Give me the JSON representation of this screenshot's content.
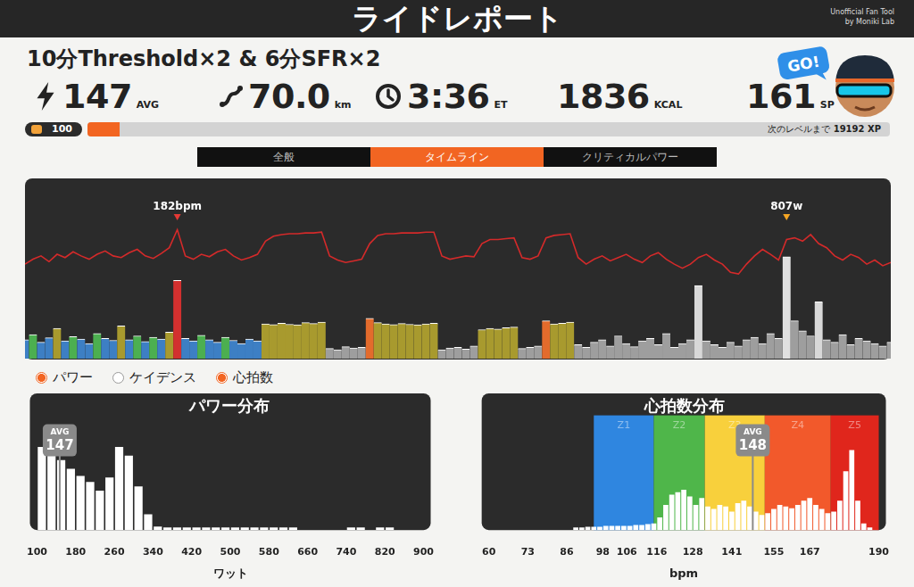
{
  "header": {
    "title": "ライドレポート",
    "credit": [
      "Unofficial Fan Tool",
      "by Moniki Lab"
    ]
  },
  "workout": "10分Threshold×2 & 6分SFR×2",
  "stats": [
    {
      "value": "147",
      "unit": "AVG"
    },
    {
      "value": "70.0",
      "unit": "km"
    },
    {
      "value": "3:36",
      "unit": "ET"
    },
    {
      "value": "1836",
      "unit": "KCAL"
    },
    {
      "value": "161",
      "unit": "SP"
    }
  ],
  "badge": "GO!",
  "level": "100",
  "xp_text": "次のレベルまで",
  "xp": "19192 XP",
  "xp_progress_percent": 4,
  "tabs": [
    "全般",
    "タイムライン",
    "クリティカルパワー"
  ],
  "active_tab": "タイムライン",
  "toggles": [
    {
      "label": "パワー",
      "checked": true
    },
    {
      "label": "ケイデンス",
      "checked": false
    },
    {
      "label": "心拍数",
      "checked": true
    }
  ],
  "chart_data": [
    {
      "type": "timeline",
      "x": [
        0,
        2,
        4,
        6,
        8,
        10,
        12,
        14,
        16,
        18,
        20,
        22,
        24,
        26,
        28,
        30,
        32,
        34,
        36,
        38,
        40,
        42,
        44,
        46,
        48,
        50,
        52,
        54,
        56,
        58,
        60,
        62,
        64,
        66,
        68,
        70,
        72,
        74,
        76,
        78,
        80,
        82,
        84,
        86,
        88,
        90,
        92,
        94,
        96,
        98,
        100,
        102,
        104,
        106,
        108,
        110,
        112,
        114,
        116,
        118,
        120,
        122,
        124,
        126,
        128,
        130,
        132,
        134,
        136,
        138,
        140,
        142,
        144,
        146,
        148,
        150,
        152,
        154,
        156,
        158,
        160,
        162,
        164,
        166,
        168,
        170,
        172,
        174,
        176,
        178,
        180,
        182,
        184,
        186,
        188,
        190,
        192,
        194,
        196,
        198,
        200,
        202,
        204,
        206,
        208,
        210,
        212,
        214,
        216
      ],
      "xlim": [
        0,
        216
      ],
      "ylim": [
        0,
        1400
      ],
      "y2lim": [
        25,
        240
      ],
      "tick_labels": false,
      "grid": false,
      "series": [
        {
          "type": "bar",
          "values": [
            150,
            190,
            130,
            165,
            240,
            140,
            175,
            155,
            120,
            200,
            160,
            145,
            260,
            150,
            180,
            135,
            170,
            155,
            210,
            620,
            160,
            140,
            185,
            150,
            130,
            170,
            145,
            120,
            155,
            140,
            275,
            270,
            280,
            272,
            268,
            285,
            278,
            290,
            80,
            70,
            95,
            85,
            90,
            320,
            285,
            275,
            270,
            278,
            272,
            268,
            275,
            280,
            70,
            85,
            90,
            75,
            100,
            230,
            240,
            235,
            245,
            250,
            80,
            90,
            100,
            300,
            275,
            280,
            290,
            110,
            90,
            130,
            150,
            100,
            180,
            120,
            95,
            140,
            160,
            110,
            200,
            90,
            120,
            150,
            580,
            140,
            110,
            90,
            130,
            100,
            150,
            170,
            120,
            200,
            160,
            807,
            300,
            220,
            180,
            450,
            150,
            130,
            190,
            110,
            160,
            140,
            120,
            100,
            130
          ],
          "colors": [
            "#3d7fc4",
            "#4caf50",
            "#3d7fc4",
            "#3d7fc4",
            "#a89a2e",
            "#3d7fc4",
            "#4caf50",
            "#3d7fc4",
            "#3d7fc4",
            "#4caf50",
            "#3d7fc4",
            "#3d7fc4",
            "#a89a2e",
            "#3d7fc4",
            "#4caf50",
            "#3d7fc4",
            "#4caf50",
            "#3d7fc4",
            "#a89a2e",
            "#d3302f",
            "#3d7fc4",
            "#3d7fc4",
            "#4caf50",
            "#3d7fc4",
            "#3d7fc4",
            "#4caf50",
            "#3d7fc4",
            "#3d7fc4",
            "#3d7fc4",
            "#3d7fc4",
            "#a89a2e",
            "#a89a2e",
            "#a89a2e",
            "#a89a2e",
            "#a89a2e",
            "#a89a2e",
            "#a89a2e",
            "#a89a2e",
            "#9e9e9e",
            "#9e9e9e",
            "#9e9e9e",
            "#9e9e9e",
            "#9e9e9e",
            "#e36b2c",
            "#a89a2e",
            "#a89a2e",
            "#a89a2e",
            "#a89a2e",
            "#a89a2e",
            "#a89a2e",
            "#a89a2e",
            "#a89a2e",
            "#9e9e9e",
            "#9e9e9e",
            "#9e9e9e",
            "#9e9e9e",
            "#9e9e9e",
            "#a89a2e",
            "#a89a2e",
            "#a89a2e",
            "#a89a2e",
            "#a89a2e",
            "#9e9e9e",
            "#9e9e9e",
            "#9e9e9e",
            "#e36b2c",
            "#a89a2e",
            "#a89a2e",
            "#a89a2e",
            "#9e9e9e",
            "#9e9e9e",
            "#9e9e9e",
            "#9e9e9e",
            "#9e9e9e",
            "#9e9e9e",
            "#9e9e9e",
            "#9e9e9e",
            "#9e9e9e",
            "#9e9e9e",
            "#9e9e9e",
            "#9e9e9e",
            "#9e9e9e",
            "#9e9e9e",
            "#9e9e9e",
            "#d8d8d8",
            "#9e9e9e",
            "#9e9e9e",
            "#9e9e9e",
            "#9e9e9e",
            "#9e9e9e",
            "#9e9e9e",
            "#9e9e9e",
            "#9e9e9e",
            "#9e9e9e",
            "#9e9e9e",
            "#e0e0e0",
            "#9e9e9e",
            "#9e9e9e",
            "#9e9e9e",
            "#d8d8d8",
            "#9e9e9e",
            "#9e9e9e",
            "#9e9e9e",
            "#9e9e9e",
            "#9e9e9e",
            "#9e9e9e",
            "#9e9e9e",
            "#9e9e9e",
            "#9e9e9e"
          ]
        },
        {
          "type": "line",
          "axis": "y2",
          "color": "#d42a2a",
          "values": [
            140,
            146,
            150,
            143,
            152,
            148,
            155,
            150,
            146,
            152,
            156,
            150,
            148,
            154,
            158,
            150,
            147,
            153,
            160,
            182,
            150,
            146,
            152,
            149,
            155,
            158,
            150,
            145,
            148,
            152,
            168,
            174,
            176,
            177,
            177,
            178,
            178,
            179,
            150,
            145,
            142,
            144,
            146,
            165,
            175,
            177,
            177,
            178,
            178,
            178,
            179,
            179,
            150,
            146,
            148,
            150,
            149,
            165,
            170,
            170,
            171,
            172,
            148,
            146,
            150,
            172,
            175,
            176,
            177,
            148,
            140,
            146,
            150,
            144,
            148,
            152,
            146,
            142,
            150,
            154,
            146,
            140,
            135,
            140,
            148,
            152,
            145,
            140,
            130,
            128,
            140,
            150,
            158,
            152,
            145,
            170,
            172,
            168,
            176,
            165,
            160,
            150,
            145,
            152,
            148,
            140,
            145,
            138,
            142
          ]
        }
      ],
      "annotations": [
        {
          "text": "182bpm",
          "x": 38,
          "color": "#e53935"
        },
        {
          "text": "807w",
          "x": 190,
          "color": "#f5a623"
        }
      ]
    },
    {
      "type": "histogram",
      "title": "パワー分布",
      "x_label": "ワット",
      "color": "#ffffff",
      "bins": [
        100,
        120,
        140,
        160,
        180,
        200,
        220,
        240,
        260,
        280,
        300,
        320,
        340,
        360,
        380,
        400,
        420,
        440,
        460,
        480,
        500,
        520,
        540,
        560,
        580,
        600,
        620,
        640,
        660,
        680,
        700,
        720,
        740,
        760,
        780,
        800,
        820,
        840,
        860,
        880,
        900
      ],
      "values": [
        95,
        92,
        80,
        70,
        62,
        55,
        45,
        60,
        95,
        85,
        50,
        18,
        4,
        3,
        3,
        3,
        3,
        3,
        3,
        3,
        3,
        3,
        3,
        3,
        3,
        3,
        3,
        0,
        0,
        0,
        0,
        0,
        3,
        3,
        0,
        3,
        3,
        0,
        0,
        0
      ],
      "xlim": [
        100,
        900
      ],
      "xticks": [
        100,
        180,
        260,
        340,
        420,
        500,
        580,
        660,
        740,
        820,
        900
      ],
      "ylim": [
        0,
        125
      ],
      "tick_labels": "x",
      "grid": false,
      "avg": {
        "label": "AVG",
        "value": 147
      }
    },
    {
      "type": "histogram",
      "title": "心拍数分布",
      "x_label": "bpm",
      "color": "#ffffff",
      "bins": [
        88,
        90,
        92,
        94,
        96,
        98,
        100,
        102,
        104,
        106,
        108,
        110,
        112,
        114,
        116,
        118,
        120,
        122,
        124,
        126,
        128,
        130,
        132,
        134,
        136,
        138,
        140,
        142,
        144,
        146,
        148,
        150,
        152,
        154,
        156,
        158,
        160,
        162,
        164,
        166,
        168,
        170,
        172,
        174,
        176,
        178,
        180,
        182,
        184,
        186,
        188,
        190
      ],
      "values": [
        3,
        3,
        4,
        4,
        4,
        5,
        5,
        5,
        5,
        5,
        6,
        6,
        7,
        8,
        15,
        30,
        42,
        45,
        48,
        40,
        30,
        38,
        28,
        25,
        30,
        28,
        22,
        32,
        35,
        28,
        22,
        18,
        20,
        25,
        30,
        28,
        26,
        30,
        35,
        38,
        30,
        25,
        20,
        22,
        35,
        70,
        95,
        35,
        8,
        3,
        0
      ],
      "xlim": [
        60,
        190
      ],
      "xticks": [
        60,
        73,
        86,
        98,
        106,
        116,
        128,
        141,
        155,
        167,
        190
      ],
      "ylim": [
        0,
        130
      ],
      "tick_labels": "x",
      "grid": false,
      "avg": {
        "label": "AVG",
        "value": 148
      },
      "zones": [
        {
          "name": "Z1",
          "from": 95,
          "to": 115,
          "color": "#2f86e0"
        },
        {
          "name": "Z2",
          "from": 115,
          "to": 132,
          "color": "#4fb64a"
        },
        {
          "name": "Z3",
          "from": 132,
          "to": 152,
          "color": "#f8d03c"
        },
        {
          "name": "Z4",
          "from": 152,
          "to": 174,
          "color": "#f2592b"
        },
        {
          "name": "Z5",
          "from": 174,
          "to": 190,
          "color": "#e0261c"
        }
      ]
    }
  ]
}
